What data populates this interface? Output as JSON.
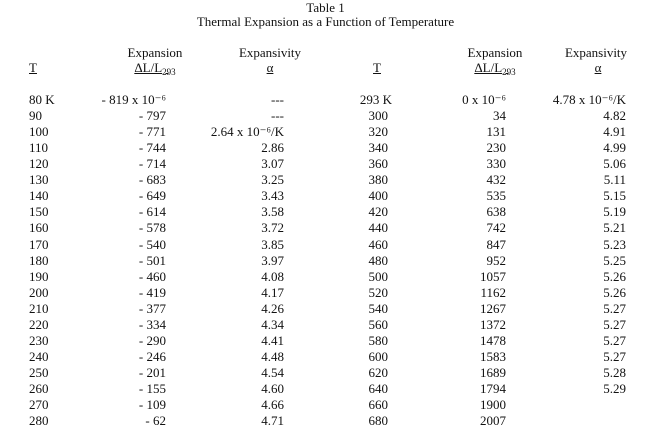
{
  "title": "Table 1",
  "subtitle": "Thermal Expansion as a Function of Temperature",
  "headers": {
    "t": "T",
    "expansion_top": "Expansion",
    "expansion_bottom": "ΔL/L",
    "expansion_sub": "293",
    "expansivity_top": "Expansivity",
    "expansivity_bottom": "α"
  },
  "left_rows": [
    [
      "80 K",
      "- 819 x 10⁻⁶",
      "---"
    ],
    [
      "90",
      "- 797",
      "---"
    ],
    [
      "100",
      "- 771",
      "2.64 x 10⁻⁶/K"
    ],
    [
      "110",
      "- 744",
      "2.86"
    ],
    [
      "120",
      "- 714",
      "3.07"
    ],
    [
      "130",
      "- 683",
      "3.25"
    ],
    [
      "140",
      "- 649",
      "3.43"
    ],
    [
      "150",
      "- 614",
      "3.58"
    ],
    [
      "160",
      "- 578",
      "3.72"
    ],
    [
      "170",
      "- 540",
      "3.85"
    ],
    [
      "180",
      "- 501",
      "3.97"
    ],
    [
      "190",
      "- 460",
      "4.08"
    ],
    [
      "200",
      "- 419",
      "4.17"
    ],
    [
      "210",
      "- 377",
      "4.26"
    ],
    [
      "220",
      "- 334",
      "4.34"
    ],
    [
      "230",
      "- 290",
      "4.41"
    ],
    [
      "240",
      "- 246",
      "4.48"
    ],
    [
      "250",
      "- 201",
      "4.54"
    ],
    [
      "260",
      "- 155",
      "4.60"
    ],
    [
      "270",
      "- 109",
      "4.66"
    ],
    [
      "280",
      "- 62",
      "4.71"
    ]
  ],
  "right_rows": [
    [
      "293 K",
      "0 x 10⁻⁶",
      "4.78 x 10⁻⁶/K"
    ],
    [
      "300",
      "34",
      "4.82"
    ],
    [
      "320",
      "131",
      "4.91"
    ],
    [
      "340",
      "230",
      "4.99"
    ],
    [
      "360",
      "330",
      "5.06"
    ],
    [
      "380",
      "432",
      "5.11"
    ],
    [
      "400",
      "535",
      "5.15"
    ],
    [
      "420",
      "638",
      "5.19"
    ],
    [
      "440",
      "742",
      "5.21"
    ],
    [
      "460",
      "847",
      "5.23"
    ],
    [
      "480",
      "952",
      "5.25"
    ],
    [
      "500",
      "1057",
      "5.26"
    ],
    [
      "520",
      "1162",
      "5.26"
    ],
    [
      "540",
      "1267",
      "5.27"
    ],
    [
      "560",
      "1372",
      "5.27"
    ],
    [
      "580",
      "1478",
      "5.27"
    ],
    [
      "600",
      "1583",
      "5.27"
    ],
    [
      "620",
      "1689",
      "5.28"
    ],
    [
      "640",
      "1794",
      "5.29"
    ],
    [
      "660",
      "1900",
      ""
    ],
    [
      "680",
      "2007",
      ""
    ]
  ]
}
